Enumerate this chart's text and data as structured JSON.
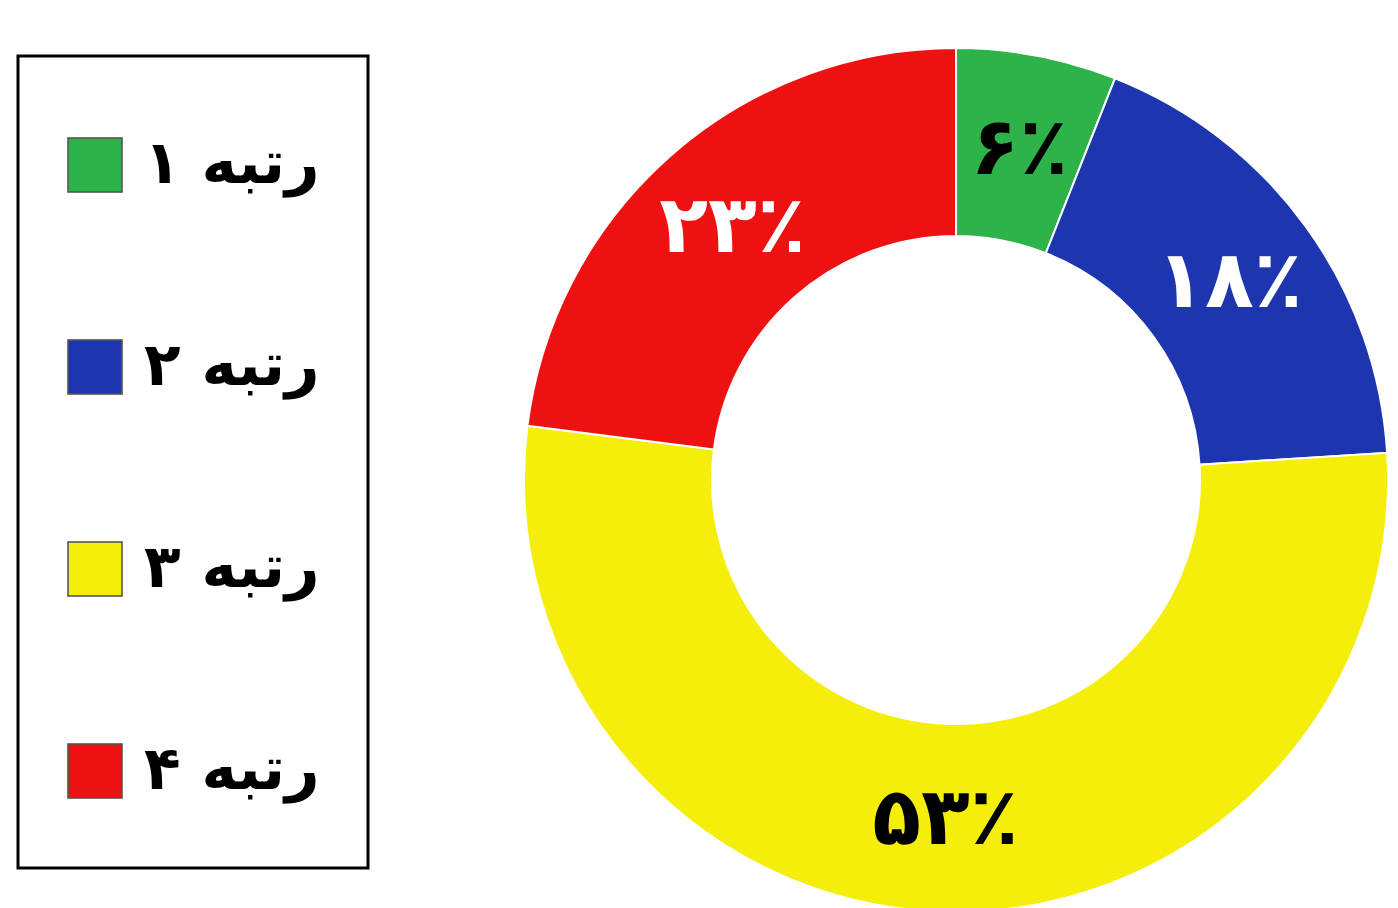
{
  "chart_data": {
    "type": "donut",
    "categories": [
      "رتبه ۱",
      "رتبه ۲",
      "رتبه ۳",
      "رتبه ۴"
    ],
    "values": [
      6,
      18,
      53,
      23
    ],
    "colors": [
      "#2db34a",
      "#1d36b0",
      "#f5ee0a",
      "#ee1111"
    ],
    "value_labels": [
      "۶٪",
      "۱۸٪",
      "۵۳٪",
      "۲۳٪"
    ],
    "legend": "left"
  }
}
